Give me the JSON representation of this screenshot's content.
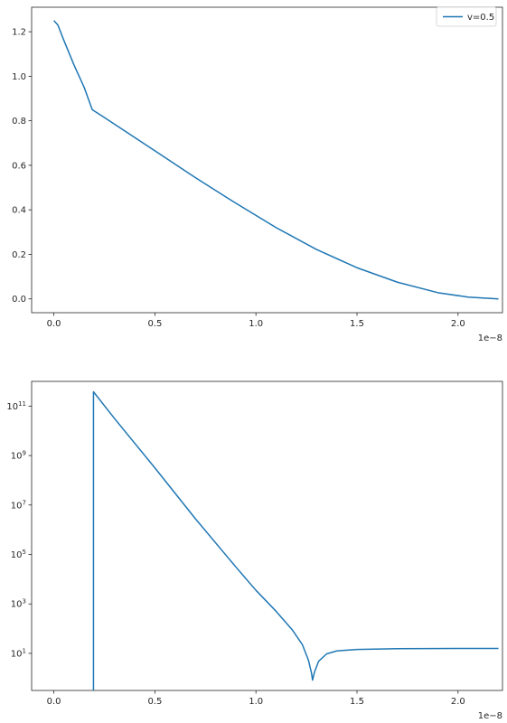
{
  "chart_data": [
    {
      "type": "line",
      "x_offset_label": "1e−8",
      "xlim": [
        -0.11,
        2.22
      ],
      "ylim": [
        -0.062,
        1.31
      ],
      "x_scale": "linear",
      "y_scale": "linear",
      "xticks": [
        0.0,
        0.5,
        1.0,
        1.5,
        2.0
      ],
      "xtick_labels": [
        "0.0",
        "0.5",
        "1.0",
        "1.5",
        "2.0"
      ],
      "yticks": [
        0.0,
        0.2,
        0.4,
        0.6,
        0.8,
        1.0,
        1.2
      ],
      "ytick_labels": [
        "0.0",
        "0.2",
        "0.4",
        "0.6",
        "0.8",
        "1.0",
        "1.2"
      ],
      "grid": false,
      "legend": "top-right",
      "series": [
        {
          "name": "v=0.5",
          "color": "#1f77b4",
          "x": [
            0.0,
            0.02,
            0.05,
            0.1,
            0.15,
            0.19,
            0.3,
            0.5,
            0.7,
            0.9,
            1.1,
            1.3,
            1.5,
            1.7,
            1.9,
            2.05,
            2.2
          ],
          "y": [
            1.25,
            1.23,
            1.16,
            1.05,
            0.95,
            0.85,
            0.785,
            0.665,
            0.545,
            0.43,
            0.32,
            0.222,
            0.14,
            0.075,
            0.028,
            0.008,
            0.0
          ]
        }
      ]
    },
    {
      "type": "line",
      "x_offset_label": "1e−8",
      "xlim": [
        -0.11,
        2.22
      ],
      "ylim": [
        -0.5,
        12.0
      ],
      "x_scale": "linear",
      "y_scale": "log",
      "xticks": [
        0.0,
        0.5,
        1.0,
        1.5,
        2.0
      ],
      "xtick_labels": [
        "0.0",
        "0.5",
        "1.0",
        "1.5",
        "2.0"
      ],
      "yticks": [
        1,
        3,
        5,
        7,
        9,
        11
      ],
      "ytick_labels": [
        {
          "base": "10",
          "exp": "1"
        },
        {
          "base": "10",
          "exp": "3"
        },
        {
          "base": "10",
          "exp": "5"
        },
        {
          "base": "10",
          "exp": "7"
        },
        {
          "base": "10",
          "exp": "9"
        },
        {
          "base": "10",
          "exp": "11"
        }
      ],
      "grid": false,
      "series": [
        {
          "color": "#1f77b4",
          "x": [
            0.196,
            0.196,
            0.196,
            0.3,
            0.5,
            0.7,
            0.9,
            1.0,
            1.1,
            1.18,
            1.23,
            1.26,
            1.275,
            1.28,
            1.29,
            1.31,
            1.35,
            1.4,
            1.5,
            1.7,
            2.0,
            2.2
          ],
          "y": [
            -0.5,
            1.0,
            11.58,
            10.5,
            8.5,
            6.45,
            4.5,
            3.55,
            2.7,
            1.95,
            1.35,
            0.72,
            0.2,
            -0.08,
            0.25,
            0.68,
            0.98,
            1.1,
            1.16,
            1.19,
            1.2,
            1.2
          ]
        }
      ]
    }
  ],
  "legend": {
    "label": "v=0.5",
    "color": "#1f77b4"
  }
}
